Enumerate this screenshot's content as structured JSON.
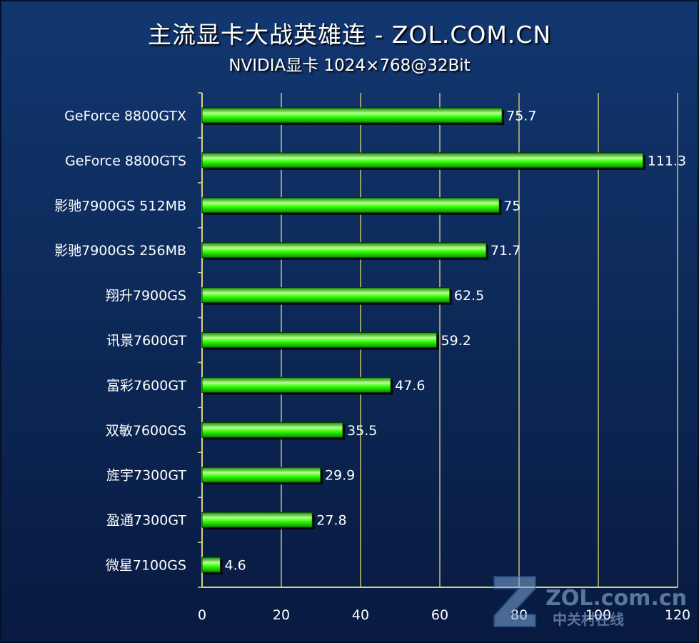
{
  "chart_data": {
    "type": "bar",
    "orientation": "horizontal",
    "title": "主流显卡大战英雄连 - ZOL.COM.CN",
    "subtitle": "NVIDIA显卡 1024×768@32Bit",
    "categories": [
      "GeForce 8800GTX",
      "GeForce 8800GTS",
      "影驰7900GS 512MB",
      "影驰7900GS 256MB",
      "翔升7900GS",
      "讯景7600GT",
      "富彩7600GT",
      "双敏7600GS",
      "旌宇7300GT",
      "盈通7300GT",
      "微星7100GS"
    ],
    "values": [
      75.7,
      111.3,
      75,
      71.7,
      62.5,
      59.2,
      47.6,
      35.5,
      29.9,
      27.8,
      4.6
    ],
    "value_labels": [
      "75.7",
      "111.3",
      "75",
      "71.7",
      "62.5",
      "59.2",
      "47.6",
      "35.5",
      "29.9",
      "27.8",
      "4.6"
    ],
    "xlim": [
      0,
      120
    ],
    "xticks": [
      "0",
      "20",
      "40",
      "60",
      "80",
      "100",
      "120"
    ],
    "grid": true,
    "legend": "none",
    "colors": {
      "bar": "#22ee00",
      "bar_highlight": "#b8ff90",
      "bar_shadow": "#000000",
      "grid": "#c8c070",
      "axis": "#d8d080",
      "background_top": "#123770",
      "background_bottom": "#081a40"
    }
  },
  "watermark": {
    "logo": "Z",
    "site": "ZOL.com.cn",
    "site_cn": "中关村在线"
  }
}
